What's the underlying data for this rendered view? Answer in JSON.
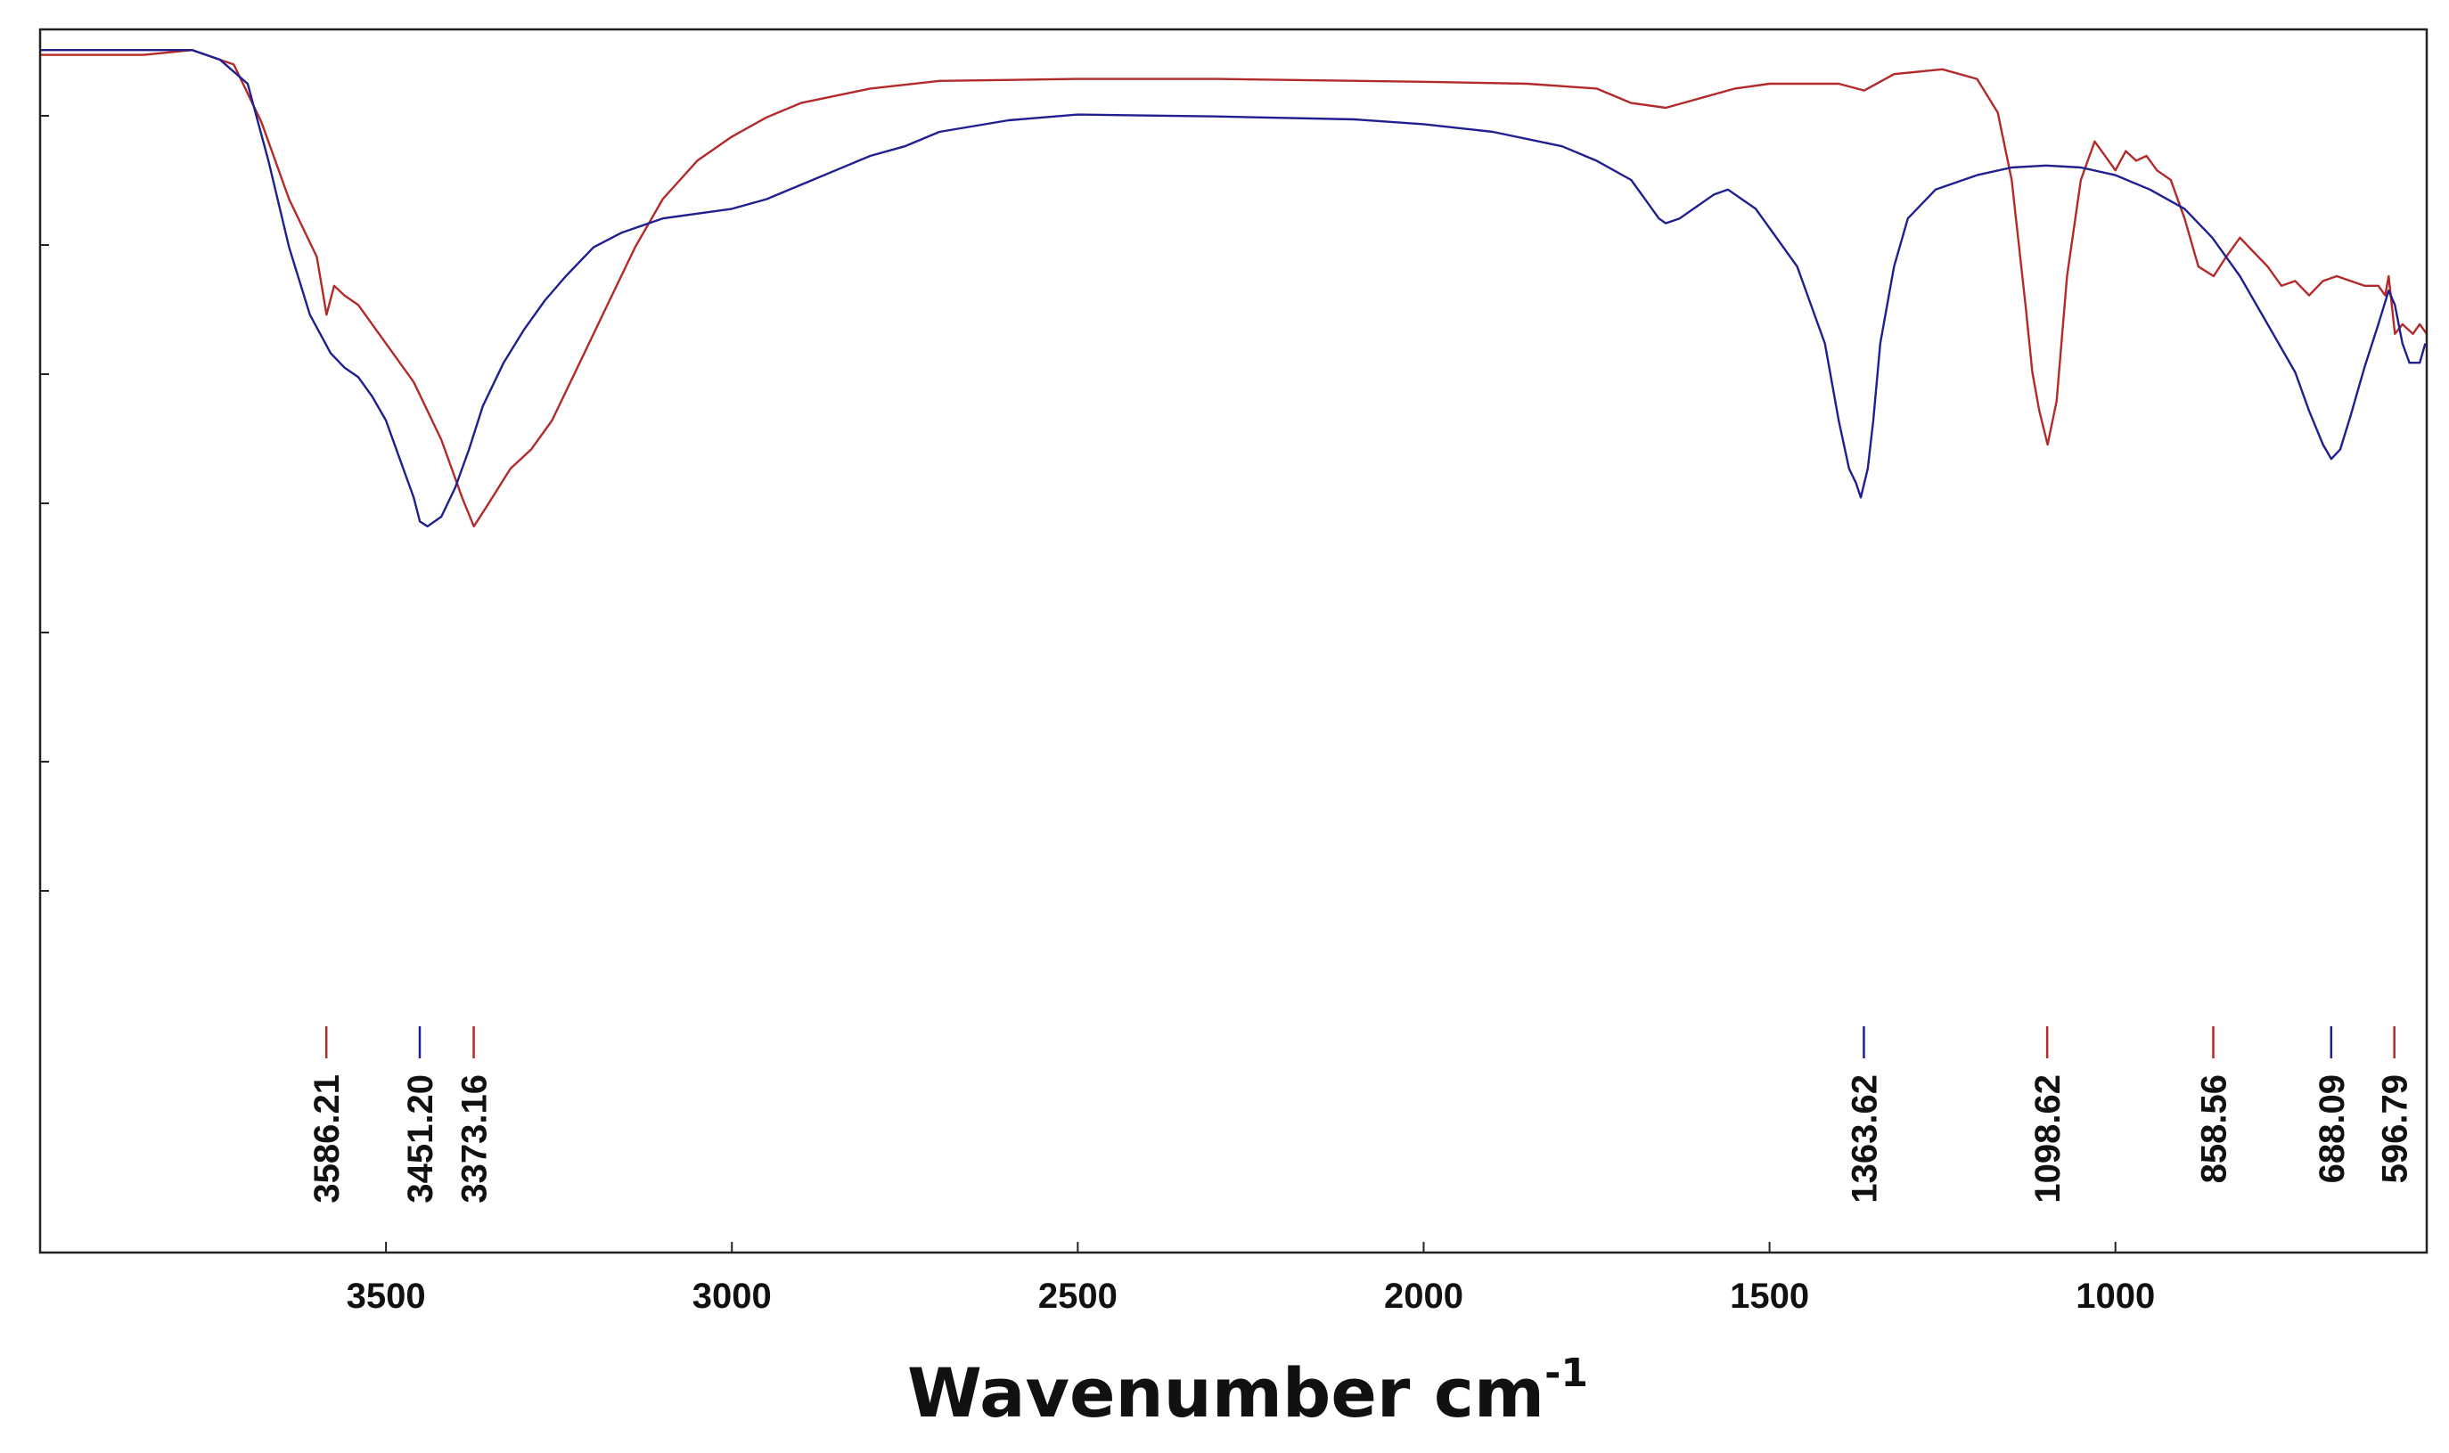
{
  "chart_data": {
    "type": "line",
    "title": "",
    "xlabel": "Wavenumber cm",
    "xlabel_superscript": "-1",
    "ylabel": "",
    "xlim": [
      4000,
      550
    ],
    "ylim": [
      0,
      100
    ],
    "x_reversed": true,
    "grid": false,
    "x_ticks": [
      3500,
      3000,
      2500,
      2000,
      1500,
      1000
    ],
    "x_tick_labels": [
      "3500",
      "3000",
      "2500",
      "2000",
      "1500",
      "1000"
    ],
    "y_tick_count": 7,
    "colors": {
      "red_series": "#b22a2a",
      "blue_series": "#1f1f8f",
      "axis": "#222222"
    },
    "series": [
      {
        "name": "red",
        "color": "#b22a2a",
        "x": [
          4000,
          3850,
          3780,
          3720,
          3680,
          3640,
          3600,
          3586,
          3575,
          3560,
          3540,
          3500,
          3460,
          3420,
          3390,
          3373,
          3355,
          3320,
          3290,
          3260,
          3220,
          3180,
          3140,
          3100,
          3050,
          3000,
          2950,
          2900,
          2800,
          2700,
          2500,
          2300,
          2000,
          1850,
          1750,
          1700,
          1650,
          1600,
          1550,
          1500,
          1400,
          1363,
          1320,
          1250,
          1200,
          1170,
          1150,
          1130,
          1120,
          1110,
          1098,
          1085,
          1070,
          1050,
          1030,
          1020,
          1000,
          985,
          970,
          955,
          940,
          920,
          900,
          880,
          858,
          840,
          820,
          800,
          780,
          760,
          740,
          720,
          700,
          680,
          660,
          640,
          620,
          610,
          605,
          596,
          585,
          570,
          560,
          550
        ],
        "y": [
          98,
          98,
          98.5,
          97,
          91,
          83,
          77,
          71,
          74,
          73,
          72,
          68,
          64,
          58,
          52,
          49,
          51,
          55,
          57,
          60,
          66,
          72,
          78,
          83,
          87,
          89.5,
          91.5,
          93,
          94.5,
          95.3,
          95.5,
          95.5,
          95.2,
          95,
          94.5,
          93,
          92.5,
          93.5,
          94.5,
          95,
          95,
          94.3,
          96,
          96.5,
          95.5,
          92,
          85,
          72,
          65,
          61,
          57.5,
          62,
          75,
          85,
          89,
          88,
          86,
          88,
          87,
          87.5,
          86,
          85,
          81,
          76,
          75,
          77,
          79,
          77.5,
          76,
          74,
          74.5,
          73,
          74.5,
          75,
          74.5,
          74,
          74,
          73,
          75,
          69,
          70,
          69,
          70,
          69
        ]
      },
      {
        "name": "blue",
        "color": "#1f1f8f",
        "x": [
          4000,
          3850,
          3780,
          3740,
          3700,
          3670,
          3640,
          3610,
          3580,
          3560,
          3540,
          3520,
          3500,
          3480,
          3460,
          3451,
          3440,
          3420,
          3400,
          3380,
          3360,
          3330,
          3300,
          3270,
          3240,
          3200,
          3160,
          3120,
          3100,
          3050,
          3000,
          2950,
          2900,
          2850,
          2800,
          2750,
          2700,
          2600,
          2500,
          2300,
          2100,
          2000,
          1900,
          1800,
          1750,
          1700,
          1680,
          1660,
          1650,
          1630,
          1610,
          1580,
          1560,
          1540,
          1520,
          1500,
          1460,
          1420,
          1400,
          1385,
          1375,
          1368,
          1363,
          1358,
          1350,
          1340,
          1320,
          1300,
          1260,
          1200,
          1150,
          1100,
          1050,
          1000,
          950,
          900,
          860,
          820,
          780,
          740,
          720,
          700,
          688,
          675,
          660,
          640,
          620,
          605,
          596,
          585,
          575,
          560,
          552
        ],
        "y": [
          98.5,
          98.5,
          98.5,
          97.5,
          95,
          87,
          78,
          71,
          67,
          65.5,
          64.5,
          62.5,
          60,
          56,
          52,
          49.5,
          49,
          50,
          53,
          57,
          61.5,
          66,
          69.5,
          72.5,
          75,
          78,
          79.5,
          80.5,
          81,
          81.5,
          82,
          83,
          84.5,
          86,
          87.5,
          88.5,
          90,
          91.2,
          91.8,
          91.6,
          91.3,
          90.8,
          90,
          88.5,
          87,
          85,
          83,
          81,
          80.5,
          81,
          82,
          83.5,
          84,
          83,
          82,
          80,
          76,
          68,
          60,
          55,
          53.5,
          52,
          53.5,
          55,
          60,
          68,
          76,
          81,
          84,
          85.5,
          86.3,
          86.5,
          86.3,
          85.5,
          84,
          82,
          79,
          75,
          70,
          65,
          61,
          57.5,
          56,
          57,
          60.5,
          65.5,
          70,
          73.5,
          72,
          68,
          66,
          66,
          68
        ]
      }
    ],
    "peak_labels": [
      {
        "x": 3586.21,
        "label": "3586.21",
        "color": "#b22a2a"
      },
      {
        "x": 3451.2,
        "label": "3451.20",
        "color": "#1f1f8f"
      },
      {
        "x": 3373.16,
        "label": "3373.16",
        "color": "#b22a2a"
      },
      {
        "x": 1363.62,
        "label": "1363.62",
        "color": "#1f1f8f"
      },
      {
        "x": 1098.62,
        "label": "1098.62",
        "color": "#b22a2a"
      },
      {
        "x": 858.56,
        "label": "858.56",
        "color": "#b22a2a"
      },
      {
        "x": 688.09,
        "label": "688.09",
        "color": "#1f1f8f"
      },
      {
        "x": 596.79,
        "label": "596.79",
        "color": "#b22a2a"
      }
    ]
  }
}
